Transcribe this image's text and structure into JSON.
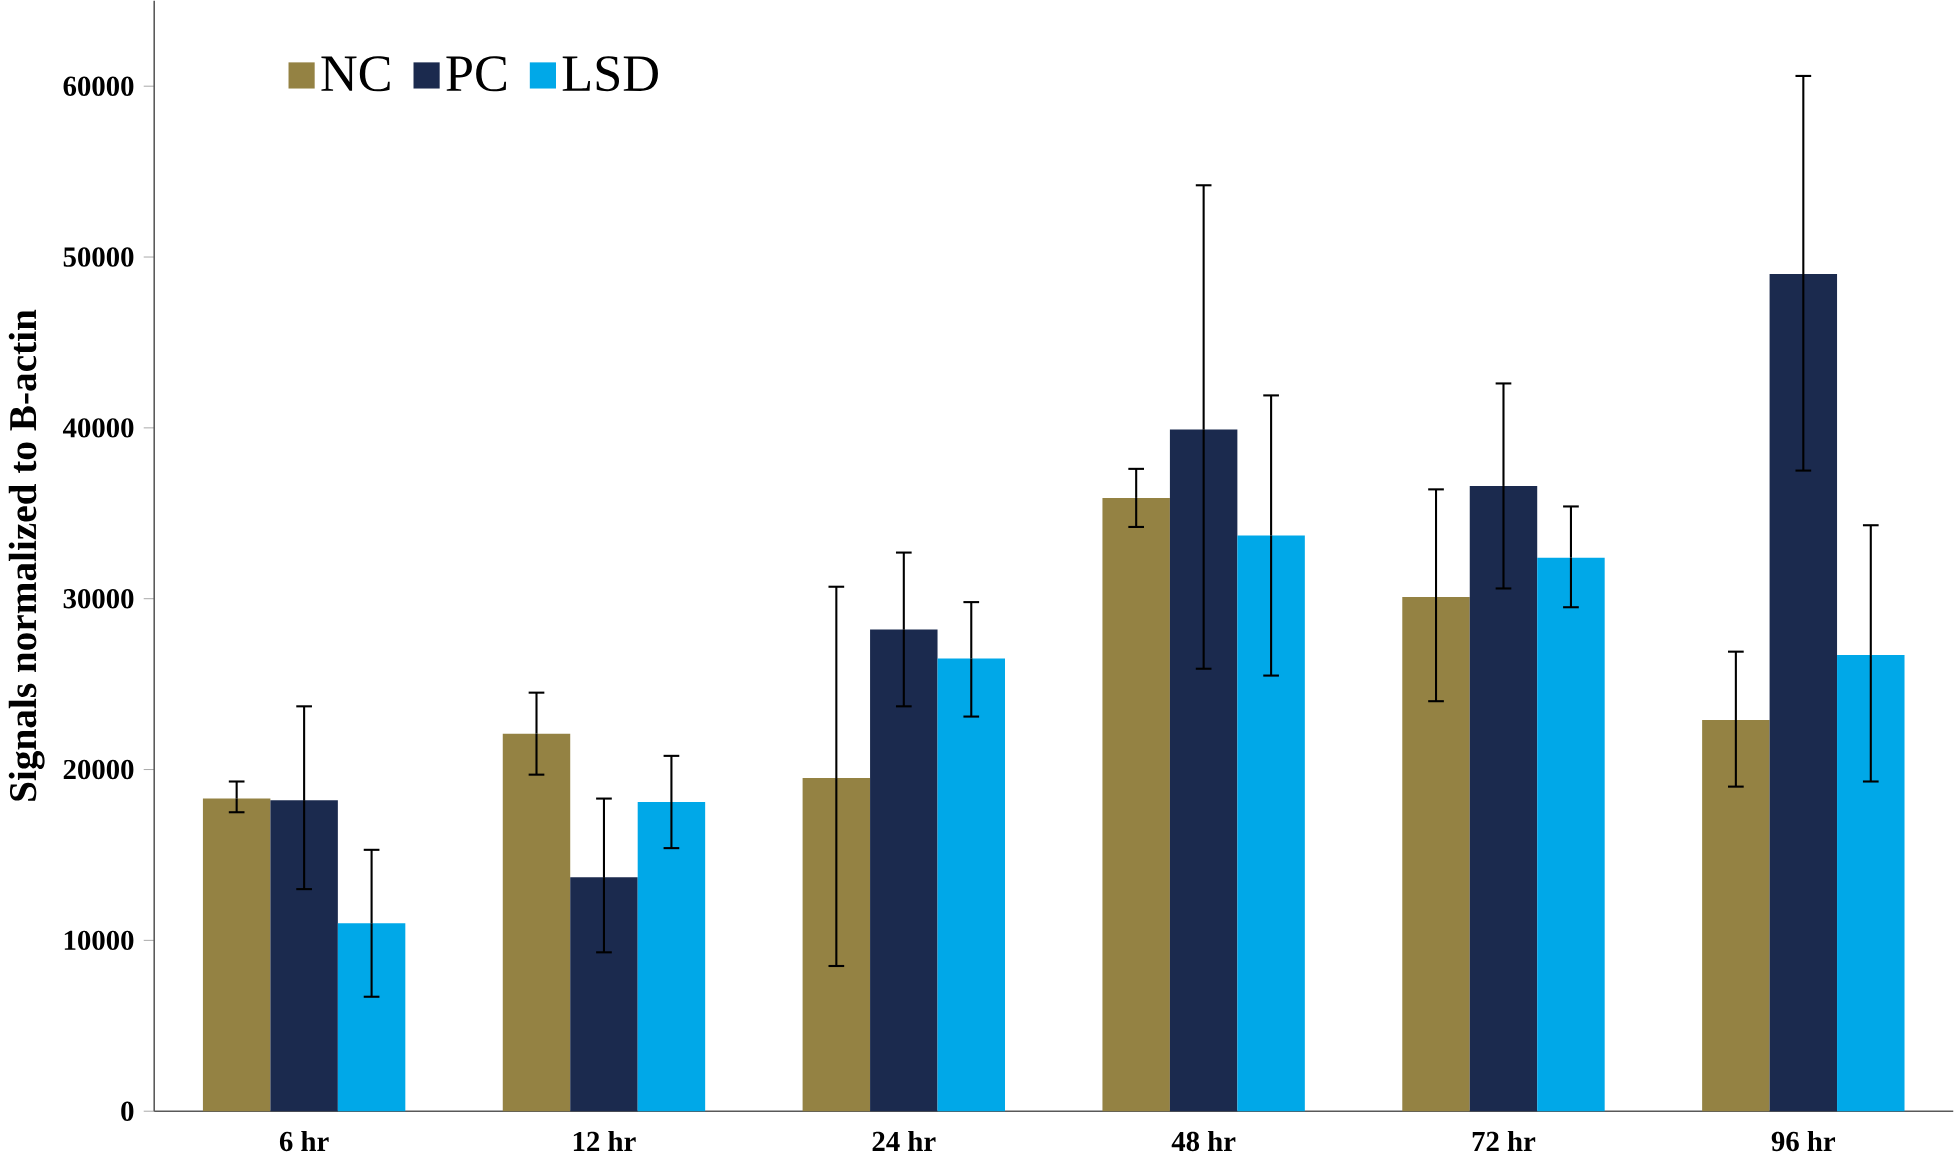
{
  "chart_data": {
    "type": "bar",
    "ylabel": "Signals normalized to B-actin",
    "categories": [
      "6 hr",
      "12 hr",
      "24 hr",
      "48 hr",
      "72 hr",
      "96 hr"
    ],
    "series": [
      {
        "name": "NC",
        "color": "#948243",
        "values": [
          18300,
          22100,
          19500,
          35900,
          30100,
          22900
        ],
        "errors": [
          [
            17500,
            19300
          ],
          [
            19700,
            24500
          ],
          [
            8500,
            30700
          ],
          [
            34200,
            37600
          ],
          [
            24000,
            36400
          ],
          [
            19000,
            26900
          ]
        ]
      },
      {
        "name": "PC",
        "color": "#1b2a4e",
        "values": [
          18200,
          13700,
          28200,
          39900,
          36600,
          49000
        ],
        "errors": [
          [
            13000,
            23700
          ],
          [
            9300,
            18300
          ],
          [
            23700,
            32700
          ],
          [
            25900,
            54200
          ],
          [
            30600,
            42600
          ],
          [
            37500,
            60600
          ]
        ]
      },
      {
        "name": "LSD",
        "color": "#00a8e8",
        "values": [
          11000,
          18100,
          26500,
          33700,
          32400,
          26700
        ],
        "errors": [
          [
            6700,
            15300
          ],
          [
            15400,
            20800
          ],
          [
            23100,
            29800
          ],
          [
            25500,
            41900
          ],
          [
            29500,
            35400
          ],
          [
            19300,
            34300
          ]
        ]
      }
    ],
    "ylim": [
      0,
      65000
    ],
    "yticks": [
      0,
      10000,
      20000,
      30000,
      40000,
      50000,
      60000
    ],
    "legend": "top left",
    "grid": false
  }
}
